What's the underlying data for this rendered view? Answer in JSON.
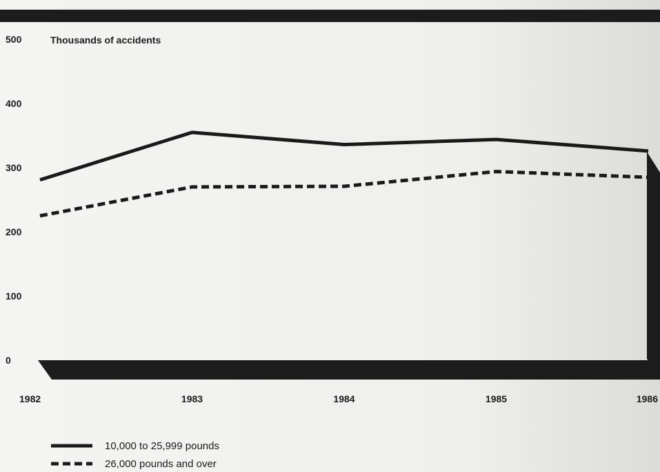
{
  "chart_data": {
    "type": "line",
    "title": "",
    "ylabel": "Thousands of accidents",
    "xlabel": "",
    "x": [
      "1982",
      "1983",
      "1984",
      "1985",
      "1986"
    ],
    "ylim": [
      0,
      500
    ],
    "yticks": [
      "0",
      "100",
      "200",
      "300",
      "400",
      "500"
    ],
    "grid": false,
    "legend_position": "bottom-left",
    "series": [
      {
        "name": "10,000 to 25,999 pounds",
        "style": "solid",
        "color": "#1a1a1a",
        "values": [
          281,
          355,
          336,
          344,
          326
        ]
      },
      {
        "name": "26,000 pounds and over",
        "style": "dashed",
        "color": "#1a1a1a",
        "values": [
          225,
          270,
          271,
          294,
          285
        ]
      }
    ]
  }
}
